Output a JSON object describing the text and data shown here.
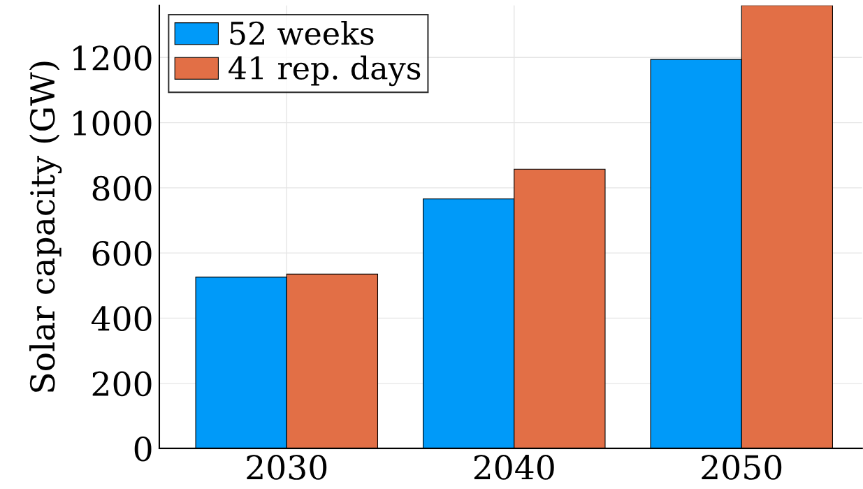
{
  "chart_data": {
    "type": "bar",
    "ylabel": "Solar capacity (GW)",
    "categories": [
      "2030",
      "2040",
      "2050"
    ],
    "series": [
      {
        "name": "52 weeks",
        "color": "#009af9",
        "values": [
          526,
          766,
          1194
        ]
      },
      {
        "name": "41 rep. days",
        "color": "#e26f46",
        "values": [
          535,
          857,
          1360
        ]
      }
    ],
    "ylim": [
      0,
      1360
    ],
    "yticks": [
      0,
      200,
      400,
      600,
      800,
      1000,
      1200
    ],
    "grid": true,
    "legend": "top left"
  }
}
